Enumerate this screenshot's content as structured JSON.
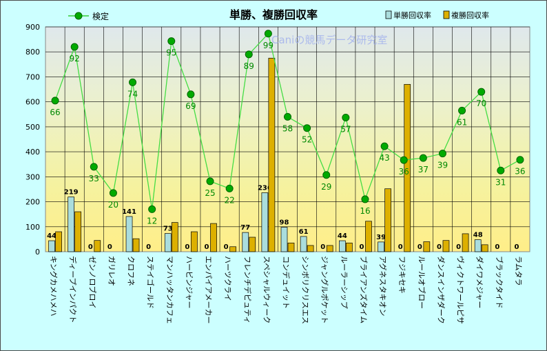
{
  "chart_data": {
    "type": "bar",
    "title": "単勝、複勝回収率",
    "watermark": "Caniの競馬データ研究室",
    "ylim": [
      0,
      900
    ],
    "yticks": [
      0,
      100,
      200,
      300,
      400,
      500,
      600,
      700,
      800,
      900
    ],
    "grid": true,
    "legend_position": "top",
    "categories": [
      "キングカメハメハ",
      "ディープインパクト",
      "ゼンノロブロイ",
      "ガリレオ",
      "クロフネ",
      "ステイゴールド",
      "マンハッタンカフェ",
      "ハービンジャー",
      "エンパイアメーカー",
      "ハーツクライ",
      "フレンチデピュティ",
      "スペシャルウィーク",
      "コンデュイット",
      "シンボリクリスエス",
      "ジャングルポケット",
      "ルーラーシップ",
      "ブライアンズタイム",
      "アグネスタキオン",
      "フジキセキ",
      "ルールオブロー",
      "ダンスインザダーク",
      "ヴィクトワールピサ",
      "ダイワメジャー",
      "ブラックタイド",
      "ラムタラ"
    ],
    "series": [
      {
        "name": "単勝回収率",
        "type": "bar",
        "color": "#aadddd",
        "values": [
          44,
          219,
          0,
          0,
          141,
          0,
          73,
          0,
          0,
          0,
          77,
          236,
          98,
          61,
          0,
          44,
          0,
          39,
          0,
          0,
          0,
          0,
          48,
          0,
          0
        ],
        "labels": [
          "44",
          "219",
          "0",
          "0",
          "141",
          "0",
          "73",
          "0",
          "0",
          "0",
          "77",
          "236",
          "98",
          "61",
          "0",
          "44",
          "0",
          "39",
          "0",
          "0",
          "0",
          "0",
          "48",
          "0",
          "0"
        ]
      },
      {
        "name": "複勝回収率",
        "type": "bar",
        "color": "#ddb000",
        "values": [
          80,
          160,
          45,
          0,
          52,
          0,
          117,
          80,
          113,
          20,
          58,
          775,
          35,
          25,
          25,
          35,
          122,
          252,
          670,
          40,
          45,
          72,
          28,
          0,
          0
        ]
      },
      {
        "name": "検定",
        "type": "line",
        "color": "#009900",
        "values": [
          66,
          92,
          33,
          20,
          74,
          12,
          95,
          69,
          25,
          22,
          89,
          99,
          58,
          52,
          29,
          57,
          16,
          43,
          36,
          37,
          39,
          61,
          70,
          31,
          36
        ],
        "positions": [
          605,
          820,
          340,
          235,
          678,
          170,
          843,
          630,
          282,
          253,
          790,
          873,
          540,
          495,
          307,
          537,
          210,
          422,
          367,
          375,
          393,
          565,
          640,
          325,
          368
        ]
      }
    ]
  }
}
